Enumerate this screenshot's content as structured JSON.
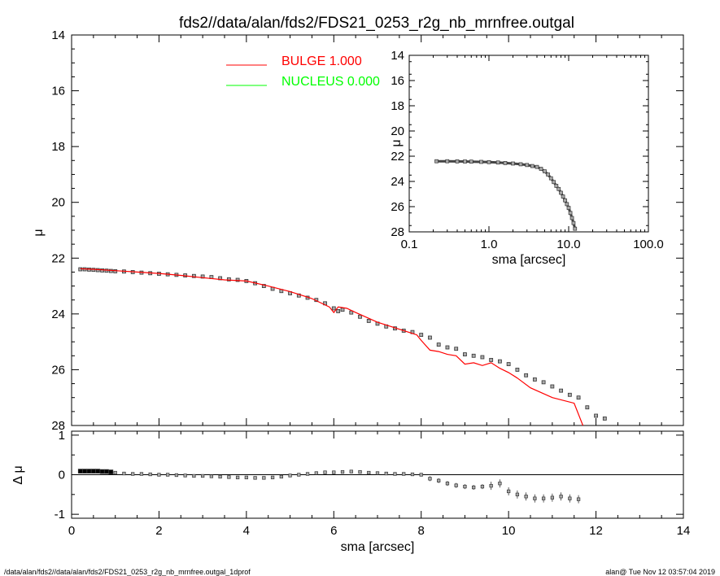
{
  "title": "fds2//data/alan/fds2/FDS21_0253_r2g_nb_mrnfree.outgal",
  "footer": {
    "left": "/data/alan/fds2//data/alan/fds2/FDS21_0253_r2g_nb_mrnfree.outgal_1dprof",
    "right": "alan@  Tue Nov 12 03:57:04 2019"
  },
  "legend": [
    {
      "label": "BULGE  1.000",
      "color": "#ff0000"
    },
    {
      "label": "NUCLEUS  0.000",
      "color": "#00ff00"
    }
  ],
  "chart_data": [
    {
      "type": "scatter",
      "name": "main-profile",
      "xlabel": "sma [arcsec]",
      "ylabel": "μ",
      "xlim": [
        0,
        14
      ],
      "ylim": [
        28,
        14
      ],
      "x_ticks": [
        "0",
        "2",
        "4",
        "6",
        "8",
        "10",
        "12",
        "14"
      ],
      "y_ticks": [
        "14",
        "16",
        "18",
        "20",
        "22",
        "24",
        "26",
        "28"
      ],
      "series": [
        {
          "role": "data",
          "marker": "square",
          "color": "#555555",
          "x": [
            0.2,
            0.3,
            0.4,
            0.5,
            0.6,
            0.7,
            0.8,
            0.9,
            1.0,
            1.2,
            1.4,
            1.6,
            1.8,
            2.0,
            2.2,
            2.4,
            2.6,
            2.8,
            3.0,
            3.2,
            3.4,
            3.6,
            3.8,
            4.0,
            4.2,
            4.4,
            4.6,
            4.8,
            5.0,
            5.2,
            5.4,
            5.6,
            5.8,
            6.0,
            6.1,
            6.2,
            6.4,
            6.6,
            6.8,
            7.0,
            7.2,
            7.4,
            7.6,
            7.8,
            8.0,
            8.2,
            8.4,
            8.6,
            8.8,
            9.0,
            9.2,
            9.4,
            9.6,
            9.8,
            10.0,
            10.2,
            10.4,
            10.6,
            10.8,
            11.0,
            11.2,
            11.4,
            11.6,
            11.8,
            12.0,
            12.2
          ],
          "y": [
            22.4,
            22.4,
            22.41,
            22.42,
            22.43,
            22.44,
            22.45,
            22.46,
            22.47,
            22.48,
            22.5,
            22.52,
            22.54,
            22.56,
            22.58,
            22.6,
            22.62,
            22.64,
            22.66,
            22.68,
            22.72,
            22.76,
            22.78,
            22.82,
            22.9,
            23.0,
            23.1,
            23.18,
            23.26,
            23.34,
            23.42,
            23.5,
            23.62,
            23.8,
            23.9,
            23.85,
            23.95,
            24.1,
            24.25,
            24.35,
            24.45,
            24.52,
            24.6,
            24.65,
            24.75,
            24.85,
            25.1,
            25.2,
            25.25,
            25.45,
            25.5,
            25.55,
            25.65,
            25.7,
            25.8,
            26.0,
            26.2,
            26.35,
            26.45,
            26.6,
            26.75,
            26.9,
            27.0,
            27.35,
            27.65,
            27.75
          ]
        },
        {
          "role": "model",
          "name": "BULGE",
          "color": "#ff0000",
          "x": [
            0.2,
            0.5,
            1.0,
            1.5,
            2.0,
            2.5,
            3.0,
            3.5,
            4.0,
            4.5,
            5.0,
            5.5,
            5.9,
            6.0,
            6.1,
            6.3,
            6.5,
            7.0,
            7.5,
            7.9,
            8.0,
            8.2,
            8.4,
            8.6,
            8.8,
            9.0,
            9.2,
            9.4,
            9.6,
            9.8,
            10.0,
            10.2,
            10.5,
            11.0,
            11.5,
            11.6,
            11.7
          ],
          "y": [
            22.38,
            22.4,
            22.45,
            22.5,
            22.55,
            22.62,
            22.7,
            22.78,
            22.82,
            23.0,
            23.2,
            23.45,
            23.75,
            23.95,
            23.75,
            23.8,
            23.95,
            24.3,
            24.55,
            24.75,
            24.95,
            25.3,
            25.35,
            25.45,
            25.5,
            25.8,
            25.75,
            25.85,
            25.75,
            25.95,
            26.1,
            26.3,
            26.65,
            27.0,
            27.2,
            27.6,
            28.0
          ]
        }
      ]
    },
    {
      "type": "scatter",
      "name": "residuals",
      "xlabel": "sma [arcsec]",
      "ylabel": "Δ μ",
      "xlim": [
        0,
        14
      ],
      "ylim": [
        -1.1,
        1.1
      ],
      "x_ticks": [
        "0",
        "2",
        "4",
        "6",
        "8",
        "10",
        "12",
        "14"
      ],
      "y_ticks": [
        "1",
        "0",
        "-1"
      ],
      "series": [
        {
          "role": "data",
          "color": "#555555",
          "x": [
            0.2,
            0.3,
            0.4,
            0.5,
            0.6,
            0.7,
            0.8,
            0.9,
            1.0,
            1.2,
            1.4,
            1.6,
            1.8,
            2.0,
            2.2,
            2.4,
            2.6,
            2.8,
            3.0,
            3.2,
            3.4,
            3.6,
            3.8,
            4.0,
            4.2,
            4.4,
            4.6,
            4.8,
            5.0,
            5.2,
            5.4,
            5.6,
            5.8,
            6.0,
            6.2,
            6.4,
            6.6,
            6.8,
            7.0,
            7.2,
            7.4,
            7.6,
            7.8,
            8.0,
            8.2,
            8.4,
            8.6,
            8.8,
            9.0,
            9.2,
            9.4,
            9.6,
            9.8,
            10.0,
            10.2,
            10.4,
            10.6,
            10.8,
            11.0,
            11.2,
            11.4,
            11.6
          ],
          "y": [
            0.09,
            0.09,
            0.09,
            0.09,
            0.09,
            0.08,
            0.08,
            0.07,
            0.05,
            0.03,
            0.02,
            0.02,
            0.01,
            0.0,
            0.0,
            -0.01,
            -0.02,
            -0.03,
            -0.03,
            -0.04,
            -0.05,
            -0.06,
            -0.07,
            -0.07,
            -0.08,
            -0.08,
            -0.07,
            -0.05,
            -0.02,
            0.0,
            0.02,
            0.04,
            0.06,
            0.06,
            0.07,
            0.08,
            0.07,
            0.05,
            0.04,
            0.03,
            0.02,
            0.02,
            0.01,
            0.0,
            -0.1,
            -0.15,
            -0.22,
            -0.27,
            -0.3,
            -0.32,
            -0.3,
            -0.28,
            -0.22,
            -0.42,
            -0.5,
            -0.55,
            -0.6,
            -0.6,
            -0.58,
            -0.55,
            -0.6,
            -0.62
          ]
        }
      ]
    },
    {
      "type": "scatter",
      "name": "inset-profile",
      "xlabel": "sma [arcsec]",
      "ylabel": "μ",
      "xscale": "log",
      "xlim": [
        0.1,
        100.0
      ],
      "ylim": [
        28,
        14
      ],
      "x_ticks": [
        "0.1",
        "1.0",
        "10.0",
        "100.0"
      ],
      "y_ticks": [
        "14",
        "16",
        "18",
        "20",
        "22",
        "24",
        "26",
        "28"
      ],
      "series": [
        {
          "role": "data",
          "color": "#555555",
          "x": [
            0.22,
            0.3,
            0.4,
            0.5,
            0.6,
            0.8,
            1.0,
            1.3,
            1.6,
            2.0,
            2.5,
            3.0,
            3.5,
            4.0,
            4.5,
            5.0,
            5.5,
            6.0,
            6.5,
            7.0,
            7.5,
            8.0,
            8.5,
            9.0,
            9.5,
            10.0,
            10.5,
            11.0,
            11.5,
            12.0
          ],
          "y": [
            22.4,
            22.4,
            22.41,
            22.42,
            22.43,
            22.45,
            22.47,
            22.5,
            22.54,
            22.58,
            22.64,
            22.7,
            22.78,
            22.85,
            23.0,
            23.2,
            23.45,
            23.75,
            24.05,
            24.35,
            24.6,
            24.9,
            25.2,
            25.5,
            25.8,
            26.1,
            26.5,
            26.9,
            27.3,
            27.75
          ]
        }
      ]
    }
  ]
}
